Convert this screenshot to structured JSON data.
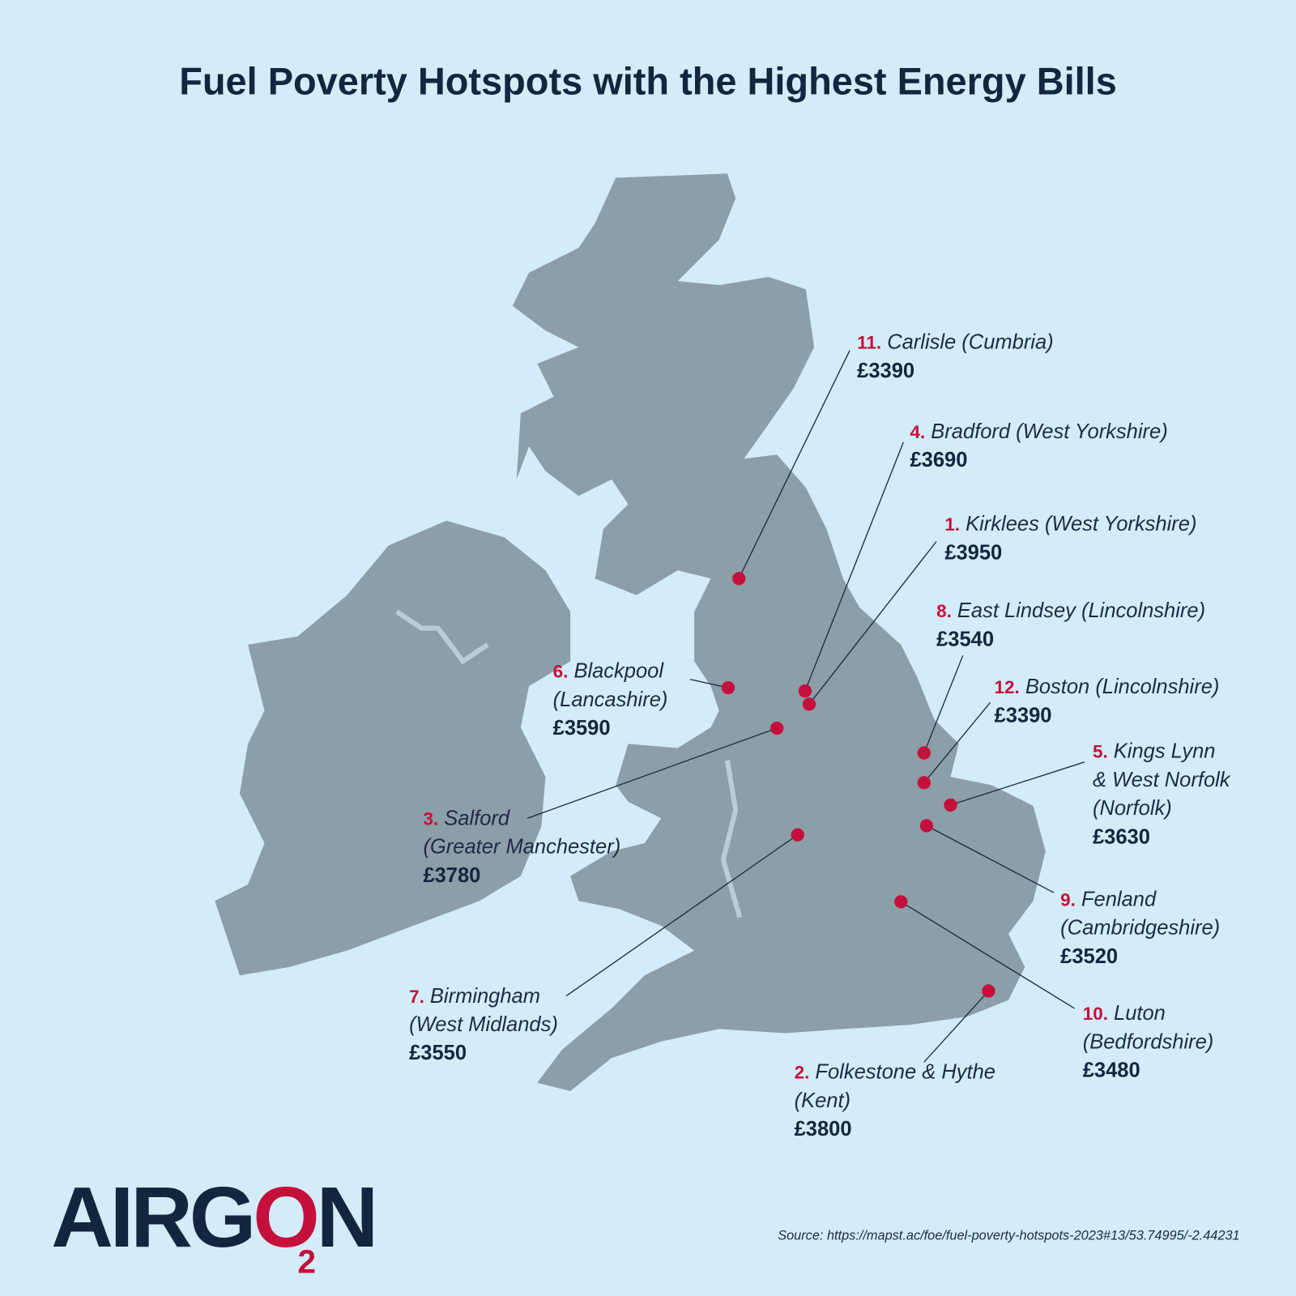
{
  "title": "Fuel Poverty Hotspots with the Highest Energy Bills",
  "hotspots": [
    {
      "rank": "1.",
      "name": [
        "Kirklees (West Yorkshire)"
      ],
      "value": "£3950"
    },
    {
      "rank": "2.",
      "name": [
        "Folkestone & Hythe",
        "(Kent)"
      ],
      "value": "£3800"
    },
    {
      "rank": "3.",
      "name": [
        "Salford",
        "(Greater Manchester)"
      ],
      "value": "£3780"
    },
    {
      "rank": "4.",
      "name": [
        "Bradford (West Yorkshire)"
      ],
      "value": "£3690"
    },
    {
      "rank": "5.",
      "name": [
        "Kings Lynn",
        "& West Norfolk",
        "(Norfolk)"
      ],
      "value": "£3630"
    },
    {
      "rank": "6.",
      "name": [
        "Blackpool",
        "(Lancashire)"
      ],
      "value": "£3590"
    },
    {
      "rank": "7.",
      "name": [
        "Birmingham",
        "(West Midlands)"
      ],
      "value": "£3550"
    },
    {
      "rank": "8.",
      "name": [
        "East Lindsey (Lincolnshire)"
      ],
      "value": "£3540"
    },
    {
      "rank": "9.",
      "name": [
        "Fenland",
        "(Cambridgeshire)"
      ],
      "value": "£3520"
    },
    {
      "rank": "10.",
      "name": [
        "Luton",
        "(Bedfordshire)"
      ],
      "value": "£3480"
    },
    {
      "rank": "11.",
      "name": [
        "Carlisle (Cumbria)"
      ],
      "value": "£3390"
    },
    {
      "rank": "12.",
      "name": [
        "Boston (Lincolnshire)"
      ],
      "value": "£3390"
    }
  ],
  "logo": {
    "start": "AIRG",
    "o": "O",
    "end": "N",
    "sub": "2"
  },
  "source": "Source: https://mapst.ac/foe/fuel-poverty-hotspots-2023#13/53.74995/-2.44231"
}
